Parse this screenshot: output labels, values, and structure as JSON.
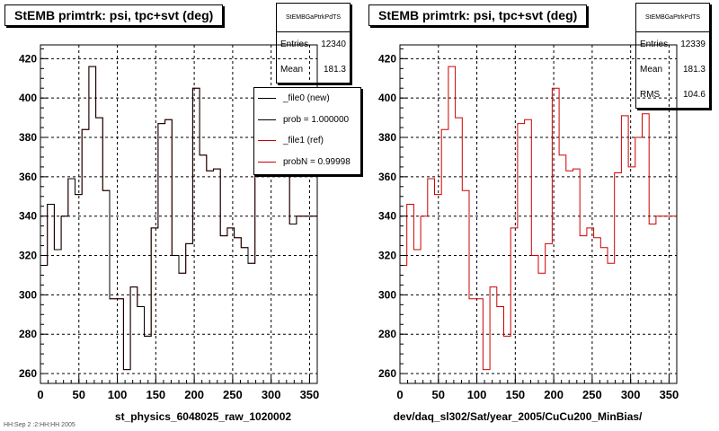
{
  "footer": "HH:Sep 2 :2:HH:HH 2005",
  "panels": [
    {
      "title": "StEMB primtrk: psi, tpc+svt (deg)",
      "stats": {
        "name": "StEMBGaPtrkPdTS",
        "entries_label": "Entries",
        "entries": "12340",
        "mean_label": "Mean",
        "mean": "181.3"
      },
      "legend": [
        {
          "label": "_file0 (new)",
          "color": "#000000"
        },
        {
          "label": "prob = 1.000000",
          "color": "#000000"
        },
        {
          "label": "_file1 (ref)",
          "color": "#cc0000"
        },
        {
          "label": "probN = 0.99998",
          "color": "#cc0000"
        }
      ],
      "footer_label": "st_physics_6048025_raw_1020002"
    },
    {
      "title": "StEMB primtrk: psi, tpc+svt (deg)",
      "stats": {
        "name": "StEMBGaPtrkPdTS",
        "entries_label": "Entries",
        "entries": "12339",
        "mean_label": "Mean",
        "mean": "181.3",
        "rms_label": "RMS",
        "rms": "104.6"
      },
      "footer_label": "dev/daq_sl302/Sat/year_2005/CuCu200_MinBias/"
    }
  ],
  "chart_data": [
    {
      "type": "histogram",
      "title": "StEMB primtrk: psi, tpc+svt (deg)",
      "xlabel": "st_physics_6048025_raw_1020002",
      "ylabel": "",
      "xlim": [
        0,
        360
      ],
      "ylim": [
        255,
        427
      ],
      "xticks": [
        0,
        50,
        100,
        150,
        200,
        250,
        300,
        350
      ],
      "yticks": [
        260,
        280,
        300,
        320,
        340,
        360,
        380,
        400,
        420
      ],
      "grid": true,
      "bin_edges": [
        0,
        9,
        18,
        27,
        36,
        45,
        54,
        63,
        72,
        81,
        90,
        99,
        108,
        117,
        126,
        135,
        144,
        153,
        162,
        171,
        180,
        189,
        198,
        207,
        216,
        225,
        234,
        243,
        252,
        261,
        270,
        279,
        288,
        297,
        306,
        315,
        324,
        333,
        342,
        351,
        360
      ],
      "series": [
        {
          "name": "_file1 (ref)",
          "color": "#cc0000",
          "values": [
            315,
            346,
            323,
            340,
            359,
            351,
            384,
            416,
            390,
            353,
            298,
            298,
            262,
            304,
            294,
            279,
            334,
            387,
            389,
            320,
            311,
            326,
            405,
            371,
            363,
            364,
            330,
            334,
            329,
            324,
            316,
            362,
            391,
            365,
            380,
            392,
            336,
            340,
            340,
            340
          ]
        },
        {
          "name": "_file0 (new)",
          "color": "#000000",
          "values": [
            315,
            346,
            323,
            340,
            359,
            351,
            384,
            416,
            390,
            353,
            298,
            298,
            262,
            304,
            294,
            279,
            334,
            387,
            389,
            320,
            311,
            326,
            405,
            371,
            363,
            364,
            330,
            334,
            329,
            324,
            316,
            362,
            391,
            365,
            380,
            392,
            336,
            340,
            340,
            340
          ]
        }
      ]
    },
    {
      "type": "histogram",
      "title": "StEMB primtrk: psi, tpc+svt (deg)",
      "xlabel": "dev/daq_sl302/Sat/year_2005/CuCu200_MinBias/",
      "ylabel": "",
      "xlim": [
        0,
        360
      ],
      "ylim": [
        255,
        427
      ],
      "xticks": [
        0,
        50,
        100,
        150,
        200,
        250,
        300,
        350
      ],
      "yticks": [
        260,
        280,
        300,
        320,
        340,
        360,
        380,
        400,
        420
      ],
      "grid": true,
      "bin_edges": [
        0,
        9,
        18,
        27,
        36,
        45,
        54,
        63,
        72,
        81,
        90,
        99,
        108,
        117,
        126,
        135,
        144,
        153,
        162,
        171,
        180,
        189,
        198,
        207,
        216,
        225,
        234,
        243,
        252,
        261,
        270,
        279,
        288,
        297,
        306,
        315,
        324,
        333,
        342,
        351,
        360
      ],
      "series": [
        {
          "name": "",
          "color": "#cc0000",
          "values": [
            315,
            346,
            323,
            340,
            359,
            351,
            384,
            416,
            390,
            353,
            298,
            298,
            262,
            304,
            294,
            279,
            334,
            387,
            389,
            320,
            311,
            326,
            405,
            371,
            363,
            364,
            330,
            334,
            329,
            324,
            316,
            362,
            391,
            365,
            380,
            392,
            336,
            340,
            340,
            340
          ]
        }
      ]
    }
  ]
}
